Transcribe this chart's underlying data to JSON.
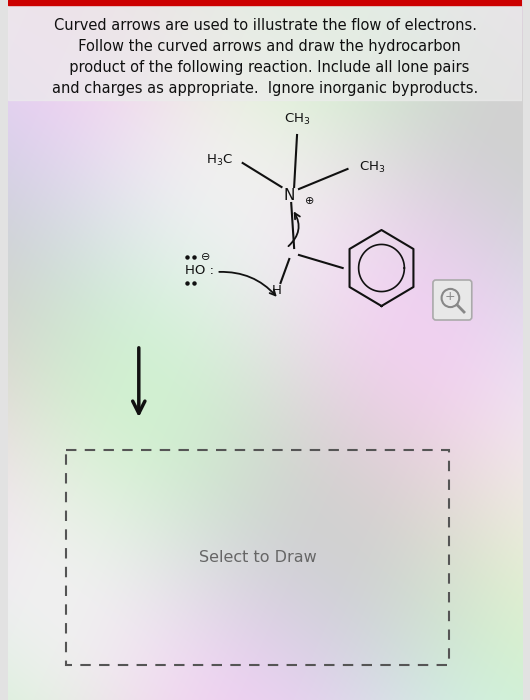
{
  "title_lines": [
    "Curved arrows are used to illustrate the flow of electrons.",
    "  Follow the curved arrows and draw the hydrocarbon",
    "  product of the following reaction. Include all lone pairs",
    "and charges as appropriate.  Ignore inorganic byproducts."
  ],
  "title_fontsize": 10.5,
  "bg_color": "#e2e2e2",
  "select_to_draw_text": "Select to Draw",
  "text_color": "#111111",
  "mag_color": "#aaaaaa"
}
